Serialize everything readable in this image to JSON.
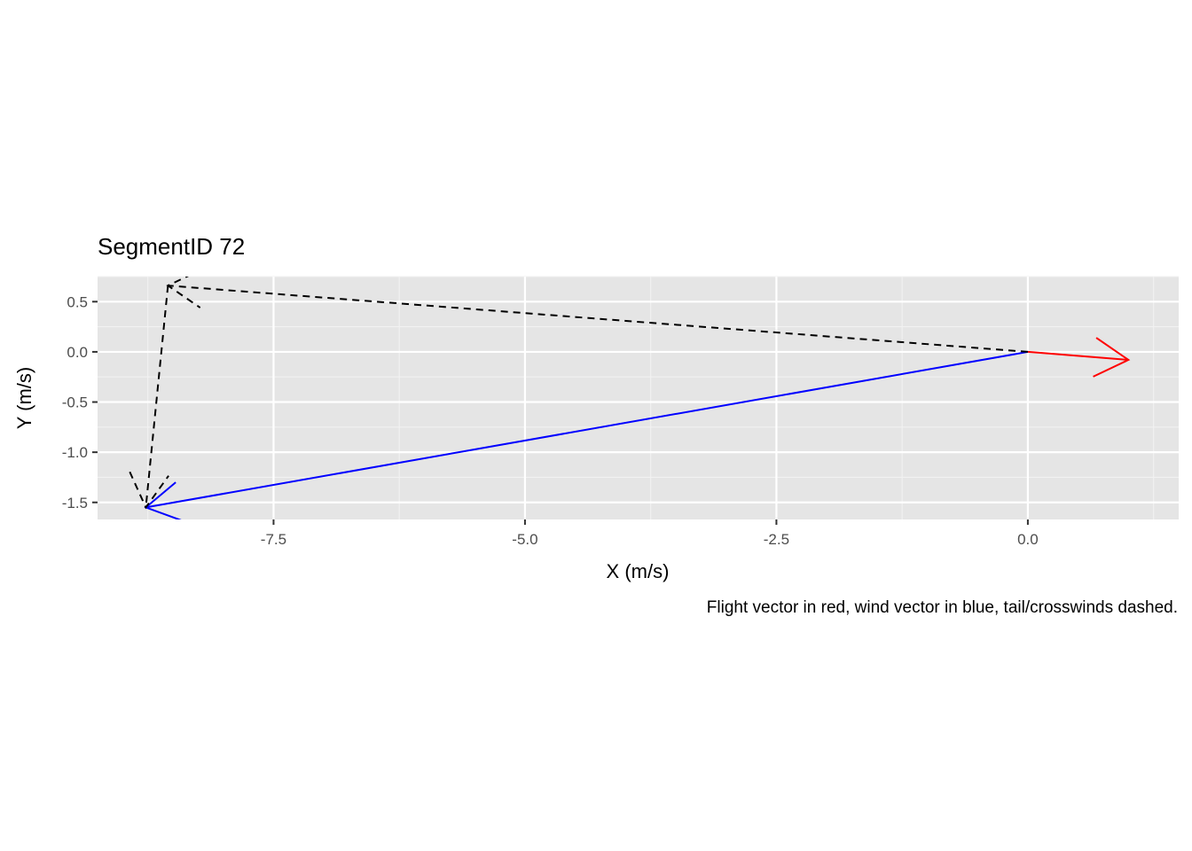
{
  "chart_data": {
    "type": "vector",
    "title": "SegmentID 72",
    "xlabel": "X (m/s)",
    "ylabel": "Y (m/s)",
    "caption": "Flight vector in red, wind vector in blue, tail/crosswinds dashed.",
    "xlim": [
      -9.25,
      1.5
    ],
    "ylim": [
      -1.67,
      0.75
    ],
    "x_ticks": [
      {
        "value": -7.5,
        "label": "-7.5"
      },
      {
        "value": -5.0,
        "label": "-5.0"
      },
      {
        "value": -2.5,
        "label": "-2.5"
      },
      {
        "value": 0.0,
        "label": "0.0"
      }
    ],
    "y_ticks": [
      {
        "value": 0.5,
        "label": "0.5"
      },
      {
        "value": 0.0,
        "label": "0.0"
      },
      {
        "value": -0.5,
        "label": "-0.5"
      },
      {
        "value": -1.0,
        "label": "-1.0"
      },
      {
        "value": -1.5,
        "label": "-1.5"
      }
    ],
    "grid": true,
    "vectors": [
      {
        "name": "Flight vector",
        "color": "#ff0000",
        "dashed": false,
        "x0": 0.0,
        "y0": 0.0,
        "x1": 1.0,
        "y1": -0.08
      },
      {
        "name": "Wind vector",
        "color": "#0000ff",
        "dashed": false,
        "x0": 0.0,
        "y0": 0.0,
        "x1": -8.77,
        "y1": -1.55
      },
      {
        "name": "Tailwind",
        "color": "#000000",
        "dashed": true,
        "x0": 0.0,
        "y0": 0.0,
        "x1": -8.55,
        "y1": 0.66
      },
      {
        "name": "Crosswind",
        "color": "#000000",
        "dashed": true,
        "x0": -8.55,
        "y0": 0.66,
        "x1": -8.77,
        "y1": -1.55
      }
    ]
  }
}
